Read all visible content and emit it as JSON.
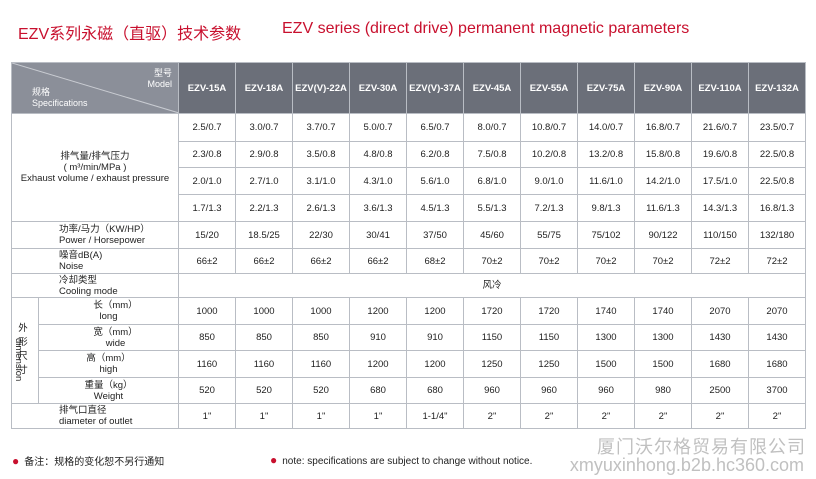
{
  "titles": {
    "cn": "EZV系列永磁（直驱）技术参数",
    "en": "EZV series (direct drive) permanent magnetic parameters"
  },
  "header": {
    "model_cn": "型号",
    "model_en": "Model",
    "spec_cn": "规格",
    "spec_en": "Specifications",
    "models": [
      "EZV-15A",
      "EZV-18A",
      "EZV(V)-22A",
      "EZV-30A",
      "EZV(V)-37A",
      "EZV-45A",
      "EZV-55A",
      "EZV-75A",
      "EZV-90A",
      "EZV-110A",
      "EZV-132A"
    ]
  },
  "exhaust": {
    "label_cn": "排气量/排气压力",
    "label_unit": "( m³/min/MPa )",
    "label_en": "Exhaust volume / exhaust pressure",
    "rows": [
      [
        "2.5/0.7",
        "3.0/0.7",
        "3.7/0.7",
        "5.0/0.7",
        "6.5/0.7",
        "8.0/0.7",
        "10.8/0.7",
        "14.0/0.7",
        "16.8/0.7",
        "21.6/0.7",
        "23.5/0.7"
      ],
      [
        "2.3/0.8",
        "2.9/0.8",
        "3.5/0.8",
        "4.8/0.8",
        "6.2/0.8",
        "7.5/0.8",
        "10.2/0.8",
        "13.2/0.8",
        "15.8/0.8",
        "19.6/0.8",
        "22.5/0.8"
      ],
      [
        "2.0/1.0",
        "2.7/1.0",
        "3.1/1.0",
        "4.3/1.0",
        "5.6/1.0",
        "6.8/1.0",
        "9.0/1.0",
        "11.6/1.0",
        "14.2/1.0",
        "17.5/1.0",
        "22.5/0.8"
      ],
      [
        "1.7/1.3",
        "2.2/1.3",
        "2.6/1.3",
        "3.6/1.3",
        "4.5/1.3",
        "5.5/1.3",
        "7.2/1.3",
        "9.8/1.3",
        "11.6/1.3",
        "14.3/1.3",
        "16.8/1.3"
      ]
    ]
  },
  "power": {
    "label_cn": "功率/马力（KW/HP）",
    "label_en": "Power / Horsepower",
    "values": [
      "15/20",
      "18.5/25",
      "22/30",
      "30/41",
      "37/50",
      "45/60",
      "55/75",
      "75/102",
      "90/122",
      "110/150",
      "132/180"
    ]
  },
  "noise": {
    "label_cn": "噪音dB(A)",
    "label_en": "Noise",
    "values": [
      "66±2",
      "66±2",
      "66±2",
      "66±2",
      "68±2",
      "70±2",
      "70±2",
      "70±2",
      "70±2",
      "72±2",
      "72±2"
    ]
  },
  "cooling": {
    "label_cn": "冷却类型",
    "label_en": "Cooling mode",
    "value": "风冷"
  },
  "dimension": {
    "label_cn": "外形尺寸",
    "label_en": "dimension",
    "long": {
      "cn": "长（mm）",
      "en": "long",
      "values": [
        "1000",
        "1000",
        "1000",
        "1200",
        "1200",
        "1720",
        "1720",
        "1740",
        "1740",
        "2070",
        "2070"
      ]
    },
    "wide": {
      "cn": "宽（mm）",
      "en": "wide",
      "values": [
        "850",
        "850",
        "850",
        "910",
        "910",
        "1150",
        "1150",
        "1300",
        "1300",
        "1430",
        "1430"
      ]
    },
    "high": {
      "cn": "高（mm）",
      "en": "high",
      "values": [
        "1160",
        "1160",
        "1160",
        "1200",
        "1200",
        "1250",
        "1250",
        "1500",
        "1500",
        "1680",
        "1680"
      ]
    },
    "weight": {
      "cn": "重量（kg）",
      "en": "Weight",
      "values": [
        "520",
        "520",
        "520",
        "680",
        "680",
        "960",
        "960",
        "960",
        "980",
        "2500",
        "3700"
      ]
    }
  },
  "outlet": {
    "label_cn": "排气口直径",
    "label_en": "diameter of outlet",
    "values": [
      "1\"",
      "1\"",
      "1\"",
      "1\"",
      "1-1/4\"",
      "2\"",
      "2\"",
      "2\"",
      "2\"",
      "2\"",
      "2\""
    ]
  },
  "notes": {
    "cn": "备注：规格的变化恕不另行通知",
    "en": "note: specifications are subject to change without notice."
  },
  "watermark": {
    "cn": "厦门沃尔格贸易有限公司",
    "en": "xmyuxinhong.b2b.hc360.com"
  }
}
